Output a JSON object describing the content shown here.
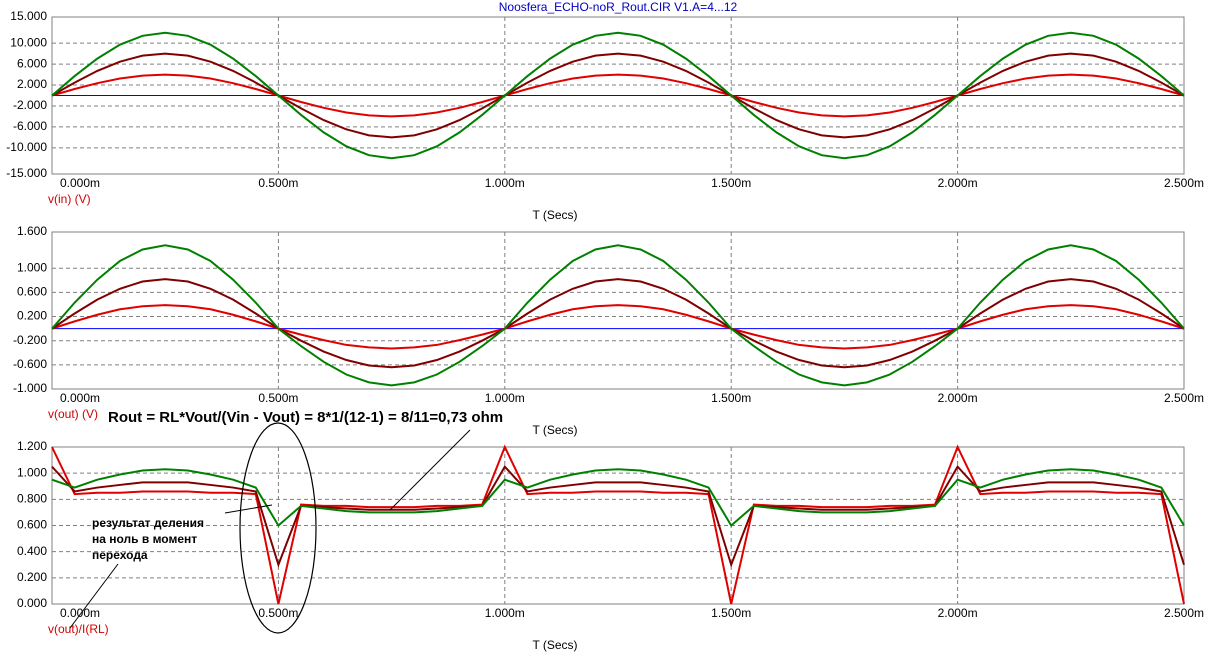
{
  "chart_data": [
    {
      "type": "line",
      "title": "Noosfera_ECHO-noR_Rout.CIR V1.A=4...12",
      "x_label": "T (Secs)",
      "y_label": "v(in) (V)",
      "zero_line": "#0000ff",
      "x": [
        0,
        5e-05,
        0.0001,
        0.00015,
        0.0002,
        0.00025,
        0.0003,
        0.00035,
        0.0004,
        0.00045,
        0.0005,
        0.00055,
        0.0006,
        0.00065,
        0.0007,
        0.00075,
        0.0008,
        0.00085,
        0.0009,
        0.00095,
        0.001,
        0.00105,
        0.0011,
        0.00115,
        0.0012,
        0.00125,
        0.0013,
        0.00135,
        0.0014,
        0.00145,
        0.0015,
        0.00155,
        0.0016,
        0.00165,
        0.0017,
        0.00175,
        0.0018,
        0.00185,
        0.0019,
        0.00195,
        0.002,
        0.00205,
        0.0021,
        0.00215,
        0.0022,
        0.00225,
        0.0023,
        0.00235,
        0.0024,
        0.00245,
        0.0025
      ],
      "xlim": [
        0,
        0.0025
      ],
      "xticks": [
        {
          "value": 0,
          "label": "0.000m"
        },
        {
          "value": 0.0005,
          "label": "0.500m"
        },
        {
          "value": 0.001,
          "label": "1.000m"
        },
        {
          "value": 0.0015,
          "label": "1.500m"
        },
        {
          "value": 0.002,
          "label": "2.000m"
        },
        {
          "value": 0.0025,
          "label": "2.500m"
        }
      ],
      "ylim": [
        -15,
        15
      ],
      "yticks": [
        {
          "value": 15,
          "label": "15.000"
        },
        {
          "value": 10,
          "label": "10.000"
        },
        {
          "value": 6,
          "label": "6.000"
        },
        {
          "value": 2,
          "label": "2.000"
        },
        {
          "value": -2,
          "label": "-2.000"
        },
        {
          "value": -6,
          "label": "-6.000"
        },
        {
          "value": -10,
          "label": "-10.000"
        },
        {
          "value": -15,
          "label": "-15.000"
        }
      ],
      "grid": true,
      "series": [
        {
          "color": "#e00000",
          "values": [
            0,
            1.24,
            2.35,
            3.24,
            3.8,
            4,
            3.8,
            3.24,
            2.35,
            1.24,
            0,
            -1.24,
            -2.35,
            -3.24,
            -3.8,
            -4,
            -3.8,
            -3.24,
            -2.35,
            -1.24,
            0,
            1.24,
            2.35,
            3.24,
            3.8,
            4,
            3.8,
            3.24,
            2.35,
            1.24,
            0,
            -1.24,
            -2.35,
            -3.24,
            -3.8,
            -4,
            -3.8,
            -3.24,
            -2.35,
            -1.24,
            0,
            1.24,
            2.35,
            3.24,
            3.8,
            4,
            3.8,
            3.24,
            2.35,
            1.24,
            0
          ]
        },
        {
          "color": "#800000",
          "values": [
            0,
            2.47,
            4.7,
            6.47,
            7.61,
            8,
            7.61,
            6.47,
            4.7,
            2.47,
            0,
            -2.47,
            -4.7,
            -6.47,
            -7.61,
            -8,
            -7.61,
            -6.47,
            -4.7,
            -2.47,
            0,
            2.47,
            4.7,
            6.47,
            7.61,
            8,
            7.61,
            6.47,
            4.7,
            2.47,
            0,
            -2.47,
            -4.7,
            -6.47,
            -7.61,
            -8,
            -7.61,
            -6.47,
            -4.7,
            -2.47,
            0,
            2.47,
            4.7,
            6.47,
            7.61,
            8,
            7.61,
            6.47,
            4.7,
            2.47,
            0
          ]
        },
        {
          "color": "#008000",
          "values": [
            0,
            3.71,
            7.05,
            9.71,
            11.41,
            12,
            11.41,
            9.71,
            7.05,
            3.71,
            0,
            -3.71,
            -7.05,
            -9.71,
            -11.41,
            -12,
            -11.41,
            -9.71,
            -7.05,
            -3.71,
            0,
            3.71,
            7.05,
            9.71,
            11.41,
            12,
            11.41,
            9.71,
            7.05,
            3.71,
            0,
            -3.71,
            -7.05,
            -9.71,
            -11.41,
            -12,
            -11.41,
            -9.71,
            -7.05,
            -3.71,
            0,
            3.71,
            7.05,
            9.71,
            11.41,
            12,
            11.41,
            9.71,
            7.05,
            3.71,
            0
          ]
        }
      ]
    },
    {
      "type": "line",
      "x_label": "T (Secs)",
      "y_label": "v(out) (V)",
      "zero_line": "#0000ff",
      "annotations": [
        "Rout = RL*Vout/(Vin - Vout) = 8*1/(12-1) = 8/11=0,73 ohm"
      ],
      "x": [
        0,
        5e-05,
        0.0001,
        0.00015,
        0.0002,
        0.00025,
        0.0003,
        0.00035,
        0.0004,
        0.00045,
        0.0005,
        0.00055,
        0.0006,
        0.00065,
        0.0007,
        0.00075,
        0.0008,
        0.00085,
        0.0009,
        0.00095,
        0.001,
        0.00105,
        0.0011,
        0.00115,
        0.0012,
        0.00125,
        0.0013,
        0.00135,
        0.0014,
        0.00145,
        0.0015,
        0.00155,
        0.0016,
        0.00165,
        0.0017,
        0.00175,
        0.0018,
        0.00185,
        0.0019,
        0.00195,
        0.002,
        0.00205,
        0.0021,
        0.00215,
        0.0022,
        0.00225,
        0.0023,
        0.00235,
        0.0024,
        0.00245,
        0.0025
      ],
      "xlim": [
        0,
        0.0025
      ],
      "xticks": [
        {
          "value": 0,
          "label": "0.000m"
        },
        {
          "value": 0.0005,
          "label": "0.500m"
        },
        {
          "value": 0.001,
          "label": "1.000m"
        },
        {
          "value": 0.0015,
          "label": "1.500m"
        },
        {
          "value": 0.002,
          "label": "2.000m"
        },
        {
          "value": 0.0025,
          "label": "2.500m"
        }
      ],
      "ylim": [
        -1,
        1.6
      ],
      "yticks": [
        {
          "value": 1.6,
          "label": "1.600"
        },
        {
          "value": 1,
          "label": "1.000"
        },
        {
          "value": 0.6,
          "label": "0.600"
        },
        {
          "value": 0.2,
          "label": "0.200"
        },
        {
          "value": -0.2,
          "label": "-0.200"
        },
        {
          "value": -0.6,
          "label": "-0.600"
        },
        {
          "value": -1,
          "label": "-1.000"
        }
      ],
      "grid": true,
      "series": [
        {
          "color": "#e00000",
          "values": [
            0,
            0.12,
            0.23,
            0.32,
            0.37,
            0.39,
            0.37,
            0.32,
            0.23,
            0.12,
            0,
            -0.1,
            -0.19,
            -0.27,
            -0.31,
            -0.33,
            -0.31,
            -0.27,
            -0.19,
            -0.1,
            0,
            0.12,
            0.23,
            0.32,
            0.37,
            0.39,
            0.37,
            0.32,
            0.23,
            0.12,
            0,
            -0.1,
            -0.19,
            -0.27,
            -0.31,
            -0.33,
            -0.31,
            -0.27,
            -0.19,
            -0.1,
            0,
            0.12,
            0.23,
            0.32,
            0.37,
            0.39,
            0.37,
            0.32,
            0.23,
            0.12,
            0
          ]
        },
        {
          "color": "#800000",
          "values": [
            0,
            0.25,
            0.48,
            0.66,
            0.78,
            0.82,
            0.78,
            0.66,
            0.48,
            0.25,
            0,
            -0.2,
            -0.38,
            -0.52,
            -0.61,
            -0.64,
            -0.61,
            -0.52,
            -0.38,
            -0.2,
            0,
            0.25,
            0.48,
            0.66,
            0.78,
            0.82,
            0.78,
            0.66,
            0.48,
            0.25,
            0,
            -0.2,
            -0.38,
            -0.52,
            -0.61,
            -0.64,
            -0.61,
            -0.52,
            -0.38,
            -0.2,
            0,
            0.25,
            0.48,
            0.66,
            0.78,
            0.82,
            0.78,
            0.66,
            0.48,
            0.25,
            0
          ]
        },
        {
          "color": "#008000",
          "values": [
            0,
            0.43,
            0.81,
            1.12,
            1.31,
            1.38,
            1.31,
            1.12,
            0.81,
            0.43,
            0,
            -0.29,
            -0.55,
            -0.76,
            -0.89,
            -0.94,
            -0.89,
            -0.76,
            -0.55,
            -0.29,
            0,
            0.43,
            0.81,
            1.12,
            1.31,
            1.38,
            1.31,
            1.12,
            0.81,
            0.43,
            0,
            -0.29,
            -0.55,
            -0.76,
            -0.89,
            -0.94,
            -0.89,
            -0.76,
            -0.55,
            -0.29,
            0,
            0.43,
            0.81,
            1.12,
            1.31,
            1.38,
            1.31,
            1.12,
            0.81,
            0.43,
            0
          ]
        }
      ]
    },
    {
      "type": "line",
      "x_label": "T (Secs)",
      "y_label": "v(out)/I(RL)",
      "annotations": [
        "результат деления",
        "на ноль в момент",
        "перехода"
      ],
      "x": [
        0,
        5e-05,
        0.0001,
        0.00015,
        0.0002,
        0.00025,
        0.0003,
        0.00035,
        0.0004,
        0.00045,
        0.0005,
        0.00055,
        0.0006,
        0.00065,
        0.0007,
        0.00075,
        0.0008,
        0.00085,
        0.0009,
        0.00095,
        0.001,
        0.00105,
        0.0011,
        0.00115,
        0.0012,
        0.00125,
        0.0013,
        0.00135,
        0.0014,
        0.00145,
        0.0015,
        0.00155,
        0.0016,
        0.00165,
        0.0017,
        0.00175,
        0.0018,
        0.00185,
        0.0019,
        0.00195,
        0.002,
        0.00205,
        0.0021,
        0.00215,
        0.0022,
        0.00225,
        0.0023,
        0.00235,
        0.0024,
        0.00245,
        0.0025
      ],
      "xlim": [
        0,
        0.0025
      ],
      "xticks": [
        {
          "value": 0,
          "label": "0.000m"
        },
        {
          "value": 0.0005,
          "label": "0.500m"
        },
        {
          "value": 0.001,
          "label": "1.000m"
        },
        {
          "value": 0.0015,
          "label": "1.500m"
        },
        {
          "value": 0.002,
          "label": "2.000m"
        },
        {
          "value": 0.0025,
          "label": "2.500m"
        }
      ],
      "ylim": [
        0,
        1.2
      ],
      "yticks": [
        {
          "value": 1.2,
          "label": "1.200"
        },
        {
          "value": 1,
          "label": "1.000"
        },
        {
          "value": 0.8,
          "label": "0.800"
        },
        {
          "value": 0.6,
          "label": "0.600"
        },
        {
          "value": 0.4,
          "label": "0.400"
        },
        {
          "value": 0.2,
          "label": "0.200"
        },
        {
          "value": 0,
          "label": "0.000"
        }
      ],
      "grid": true,
      "series": [
        {
          "color": "#e00000",
          "values": [
            1.2,
            0.84,
            0.85,
            0.85,
            0.86,
            0.86,
            0.86,
            0.85,
            0.85,
            0.84,
            0,
            0.76,
            0.75,
            0.75,
            0.74,
            0.74,
            0.74,
            0.75,
            0.75,
            0.76,
            1.2,
            0.84,
            0.85,
            0.85,
            0.86,
            0.86,
            0.86,
            0.85,
            0.85,
            0.84,
            0,
            0.76,
            0.75,
            0.75,
            0.74,
            0.74,
            0.74,
            0.75,
            0.75,
            0.76,
            1.2,
            0.84,
            0.85,
            0.85,
            0.86,
            0.86,
            0.86,
            0.85,
            0.85,
            0.84,
            0
          ]
        },
        {
          "color": "#800000",
          "values": [
            1.05,
            0.86,
            0.89,
            0.91,
            0.93,
            0.93,
            0.93,
            0.91,
            0.89,
            0.86,
            0.3,
            0.75,
            0.74,
            0.73,
            0.72,
            0.72,
            0.72,
            0.73,
            0.74,
            0.75,
            1.05,
            0.86,
            0.89,
            0.91,
            0.93,
            0.93,
            0.93,
            0.91,
            0.89,
            0.86,
            0.3,
            0.75,
            0.74,
            0.73,
            0.72,
            0.72,
            0.72,
            0.73,
            0.74,
            0.75,
            1.05,
            0.86,
            0.89,
            0.91,
            0.93,
            0.93,
            0.93,
            0.91,
            0.89,
            0.86,
            0.3
          ]
        },
        {
          "color": "#008000",
          "values": [
            0.95,
            0.89,
            0.95,
            0.99,
            1.02,
            1.03,
            1.02,
            0.99,
            0.95,
            0.89,
            0.6,
            0.75,
            0.73,
            0.71,
            0.7,
            0.7,
            0.7,
            0.71,
            0.73,
            0.75,
            0.95,
            0.89,
            0.95,
            0.99,
            1.02,
            1.03,
            1.02,
            0.99,
            0.95,
            0.89,
            0.6,
            0.75,
            0.73,
            0.71,
            0.7,
            0.7,
            0.7,
            0.71,
            0.73,
            0.75,
            0.95,
            0.89,
            0.95,
            0.99,
            1.02,
            1.03,
            1.02,
            0.99,
            0.95,
            0.89,
            0.6
          ]
        }
      ]
    }
  ]
}
